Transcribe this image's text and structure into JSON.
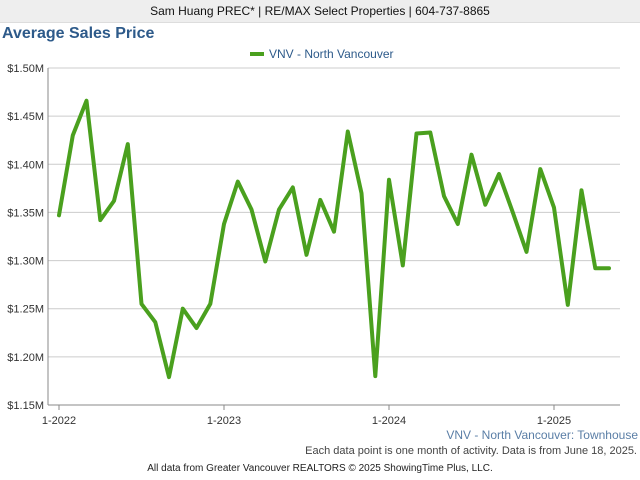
{
  "header": {
    "text": "Sam Huang PREC* | RE/MAX Select Properties | 604-737-8865"
  },
  "colors": {
    "series": "#4aa01e",
    "title": "#2d5a8a",
    "region": "#5a7ea6"
  },
  "chart_data": {
    "type": "line",
    "title": "Average Sales Price",
    "xlabel": "",
    "ylabel": "",
    "ylim": [
      1.15,
      1.5
    ],
    "yticks": [
      "$1.15M",
      "$1.20M",
      "$1.25M",
      "$1.30M",
      "$1.35M",
      "$1.40M",
      "$1.45M",
      "$1.50M"
    ],
    "yticks_values": [
      1.15,
      1.2,
      1.25,
      1.3,
      1.35,
      1.4,
      1.45,
      1.5
    ],
    "xticks": [
      "1-2022",
      "1-2023",
      "1-2024",
      "1-2025"
    ],
    "grid": true,
    "legend": "top-center",
    "series": [
      {
        "name": "VNV - North Vancouver",
        "x": [
          "1-2022",
          "2-2022",
          "3-2022",
          "4-2022",
          "5-2022",
          "6-2022",
          "7-2022",
          "8-2022",
          "9-2022",
          "10-2022",
          "11-2022",
          "12-2022",
          "1-2023",
          "2-2023",
          "3-2023",
          "4-2023",
          "5-2023",
          "6-2023",
          "7-2023",
          "8-2023",
          "9-2023",
          "10-2023",
          "11-2023",
          "12-2023",
          "1-2024",
          "2-2024",
          "3-2024",
          "4-2024",
          "5-2024",
          "6-2024",
          "7-2024",
          "8-2024",
          "9-2024",
          "10-2024",
          "11-2024",
          "12-2024",
          "1-2025",
          "2-2025",
          "3-2025",
          "4-2025",
          "5-2025"
        ],
        "values": [
          1.347,
          1.43,
          1.466,
          1.342,
          1.362,
          1.421,
          1.255,
          1.236,
          1.179,
          1.25,
          1.23,
          1.255,
          1.338,
          1.382,
          1.353,
          1.299,
          1.353,
          1.376,
          1.306,
          1.363,
          1.33,
          1.434,
          1.37,
          1.18,
          1.384,
          1.295,
          1.432,
          1.433,
          1.367,
          1.338,
          1.41,
          1.358,
          1.39,
          1.35,
          1.309,
          1.395,
          1.355,
          1.254,
          1.373,
          1.292,
          1.292
        ]
      }
    ]
  },
  "footer": {
    "region": "VNV - North Vancouver: Townhouse",
    "note": "Each data point is one month of activity. Data is from June 18, 2025.",
    "credit": "All data from Greater Vancouver REALTORS © 2025 ShowingTime Plus, LLC."
  }
}
